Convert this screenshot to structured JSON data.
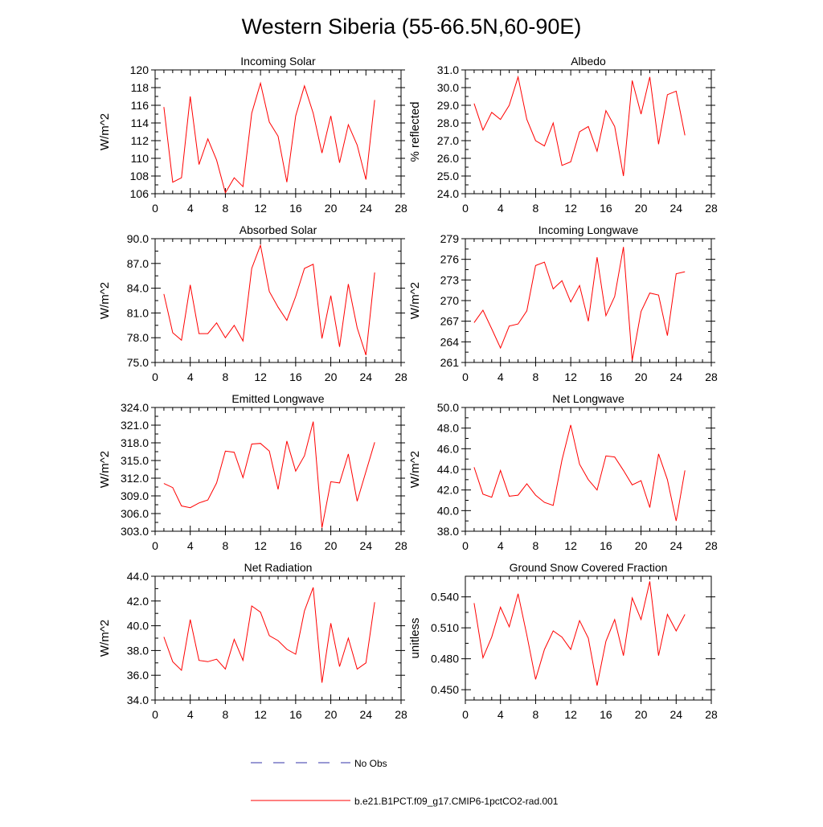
{
  "title": "Western Siberia (55-66.5N,60-90E)",
  "colors": {
    "model": "#ff0000",
    "obs": "#3333aa",
    "axis": "#000000"
  },
  "legend": {
    "obs_label": "No Obs",
    "model_label": "b.e21.B1PCT.f09_g17.CMIP6-1pctCO2-rad.001"
  },
  "chart_data": [
    {
      "type": "line",
      "title": "Incoming Solar",
      "ylabel": "W/m^2",
      "xlim": [
        0,
        28
      ],
      "ylim": [
        106,
        120
      ],
      "xticks": [
        0,
        4,
        8,
        12,
        16,
        20,
        24,
        28
      ],
      "yticks": [
        106,
        108,
        110,
        112,
        114,
        116,
        118,
        120
      ],
      "ytick_labels": [
        "106",
        "108",
        "110",
        "112",
        "114",
        "116",
        "118",
        "120"
      ],
      "x": [
        1,
        2,
        3,
        4,
        5,
        6,
        7,
        8,
        9,
        10,
        11,
        12,
        13,
        14,
        15,
        16,
        17,
        18,
        19,
        20,
        21,
        22,
        23,
        24,
        25
      ],
      "series": [
        {
          "values": [
            115.8,
            107.3,
            107.8,
            117.0,
            109.3,
            112.2,
            109.8,
            106.1,
            107.8,
            106.8,
            115.1,
            118.5,
            114.1,
            112.5,
            107.3,
            114.8,
            118.2,
            115.1,
            110.6,
            114.8,
            109.5,
            113.8,
            111.5,
            107.6,
            116.6
          ]
        }
      ]
    },
    {
      "type": "line",
      "title": "Albedo",
      "ylabel": "% reflected",
      "xlim": [
        0,
        28
      ],
      "ylim": [
        24,
        31
      ],
      "xticks": [
        0,
        4,
        8,
        12,
        16,
        20,
        24,
        28
      ],
      "yticks": [
        24,
        25,
        26,
        27,
        28,
        29,
        30,
        31
      ],
      "ytick_labels": [
        "24.0",
        "25.0",
        "26.0",
        "27.0",
        "28.0",
        "29.0",
        "30.0",
        "31.0"
      ],
      "x": [
        1,
        2,
        3,
        4,
        5,
        6,
        7,
        8,
        9,
        10,
        11,
        12,
        13,
        14,
        15,
        16,
        17,
        18,
        19,
        20,
        21,
        22,
        23,
        24,
        25
      ],
      "series": [
        {
          "values": [
            29.1,
            27.6,
            28.6,
            28.2,
            29.0,
            30.6,
            28.2,
            27.0,
            26.7,
            28.0,
            25.6,
            25.8,
            27.5,
            27.8,
            26.4,
            28.7,
            27.8,
            25.0,
            30.4,
            28.5,
            30.6,
            26.8,
            29.6,
            29.8,
            27.3
          ]
        }
      ]
    },
    {
      "type": "line",
      "title": "Absorbed Solar",
      "ylabel": "W/m^2",
      "xlim": [
        0,
        28
      ],
      "ylim": [
        75,
        90
      ],
      "xticks": [
        0,
        4,
        8,
        12,
        16,
        20,
        24,
        28
      ],
      "yticks": [
        75,
        78,
        81,
        84,
        87,
        90
      ],
      "ytick_labels": [
        "75.0",
        "78.0",
        "81.0",
        "84.0",
        "87.0",
        "90.0"
      ],
      "x": [
        1,
        2,
        3,
        4,
        5,
        6,
        7,
        8,
        9,
        10,
        11,
        12,
        13,
        14,
        15,
        16,
        17,
        18,
        19,
        20,
        21,
        22,
        23,
        24,
        25
      ],
      "series": [
        {
          "values": [
            83.3,
            78.6,
            77.7,
            84.4,
            78.5,
            78.5,
            79.8,
            78.0,
            79.5,
            77.6,
            86.4,
            89.2,
            83.6,
            81.7,
            80.1,
            83.0,
            86.4,
            86.9,
            77.9,
            83.1,
            76.9,
            84.5,
            79.2,
            75.9,
            85.9
          ]
        }
      ]
    },
    {
      "type": "line",
      "title": "Incoming Longwave",
      "ylabel": "W/m^2",
      "xlim": [
        0,
        28
      ],
      "ylim": [
        261,
        279
      ],
      "xticks": [
        0,
        4,
        8,
        12,
        16,
        20,
        24,
        28
      ],
      "yticks": [
        261,
        264,
        267,
        270,
        273,
        276,
        279
      ],
      "ytick_labels": [
        "261",
        "264",
        "267",
        "270",
        "273",
        "276",
        "279"
      ],
      "x": [
        1,
        2,
        3,
        4,
        5,
        6,
        7,
        8,
        9,
        10,
        11,
        12,
        13,
        14,
        15,
        16,
        17,
        18,
        19,
        20,
        21,
        22,
        23,
        24,
        25
      ],
      "series": [
        {
          "values": [
            266.8,
            268.6,
            265.9,
            263.1,
            266.3,
            266.6,
            268.5,
            275.1,
            275.6,
            271.7,
            272.9,
            269.8,
            272.2,
            267.0,
            276.3,
            267.8,
            270.6,
            277.8,
            261.3,
            268.4,
            271.1,
            270.8,
            264.9,
            273.9,
            274.2
          ]
        }
      ]
    },
    {
      "type": "line",
      "title": "Emitted Longwave",
      "ylabel": "W/m^2",
      "xlim": [
        0,
        28
      ],
      "ylim": [
        303,
        324
      ],
      "xticks": [
        0,
        4,
        8,
        12,
        16,
        20,
        24,
        28
      ],
      "yticks": [
        303,
        306,
        309,
        312,
        315,
        318,
        321,
        324
      ],
      "ytick_labels": [
        "303.0",
        "306.0",
        "309.0",
        "312.0",
        "315.0",
        "318.0",
        "321.0",
        "324.0"
      ],
      "x": [
        1,
        2,
        3,
        4,
        5,
        6,
        7,
        8,
        9,
        10,
        11,
        12,
        13,
        14,
        15,
        16,
        17,
        18,
        19,
        20,
        21,
        22,
        23,
        24,
        25
      ],
      "series": [
        {
          "values": [
            311.1,
            310.4,
            307.3,
            307.0,
            307.8,
            308.3,
            311.2,
            316.6,
            316.4,
            312.1,
            317.8,
            317.9,
            316.6,
            310.1,
            318.3,
            313.2,
            315.8,
            321.6,
            303.6,
            311.4,
            311.2,
            316.1,
            308.1,
            313.1,
            318.1
          ]
        }
      ]
    },
    {
      "type": "line",
      "title": "Net Longwave",
      "ylabel": "W/m^2",
      "xlim": [
        0,
        28
      ],
      "ylim": [
        38,
        50
      ],
      "xticks": [
        0,
        4,
        8,
        12,
        16,
        20,
        24,
        28
      ],
      "yticks": [
        38,
        40,
        42,
        44,
        46,
        48,
        50
      ],
      "ytick_labels": [
        "38.0",
        "40.0",
        "42.0",
        "44.0",
        "46.0",
        "48.0",
        "50.0"
      ],
      "x": [
        1,
        2,
        3,
        4,
        5,
        6,
        7,
        8,
        9,
        10,
        11,
        12,
        13,
        14,
        15,
        16,
        17,
        18,
        19,
        20,
        21,
        22,
        23,
        24,
        25
      ],
      "series": [
        {
          "values": [
            44.2,
            41.6,
            41.3,
            43.9,
            41.4,
            41.5,
            42.6,
            41.5,
            40.8,
            40.5,
            44.9,
            48.3,
            44.5,
            43.0,
            42.0,
            45.3,
            45.2,
            43.9,
            42.5,
            42.9,
            40.3,
            45.5,
            43.0,
            39.0,
            43.9
          ]
        }
      ]
    },
    {
      "type": "line",
      "title": "Net Radiation",
      "ylabel": "W/m^2",
      "xlim": [
        0,
        28
      ],
      "ylim": [
        34,
        44
      ],
      "xticks": [
        0,
        4,
        8,
        12,
        16,
        20,
        24,
        28
      ],
      "yticks": [
        34,
        36,
        38,
        40,
        42,
        44
      ],
      "ytick_labels": [
        "34.0",
        "36.0",
        "38.0",
        "40.0",
        "42.0",
        "44.0"
      ],
      "x": [
        1,
        2,
        3,
        4,
        5,
        6,
        7,
        8,
        9,
        10,
        11,
        12,
        13,
        14,
        15,
        16,
        17,
        18,
        19,
        20,
        21,
        22,
        23,
        24,
        25
      ],
      "series": [
        {
          "values": [
            39.1,
            37.1,
            36.4,
            40.5,
            37.2,
            37.1,
            37.3,
            36.5,
            38.9,
            37.2,
            41.6,
            41.1,
            39.2,
            38.8,
            38.1,
            37.7,
            41.2,
            43.1,
            35.4,
            40.2,
            36.7,
            39.0,
            36.5,
            37.0,
            41.9
          ]
        }
      ]
    },
    {
      "type": "line",
      "title": "Ground Snow Covered Fraction",
      "ylabel": "unitless",
      "xlim": [
        0,
        28
      ],
      "ylim": [
        0.44,
        0.56
      ],
      "xticks": [
        0,
        4,
        8,
        12,
        16,
        20,
        24,
        28
      ],
      "yticks": [
        0.45,
        0.48,
        0.51,
        0.54
      ],
      "ytick_labels": [
        "0.450",
        "0.480",
        "0.510",
        "0.540"
      ],
      "x": [
        1,
        2,
        3,
        4,
        5,
        6,
        7,
        8,
        9,
        10,
        11,
        12,
        13,
        14,
        15,
        16,
        17,
        18,
        19,
        20,
        21,
        22,
        23,
        24,
        25
      ],
      "series": [
        {
          "values": [
            0.534,
            0.481,
            0.501,
            0.53,
            0.511,
            0.543,
            0.503,
            0.46,
            0.489,
            0.507,
            0.501,
            0.489,
            0.517,
            0.5,
            0.454,
            0.497,
            0.518,
            0.483,
            0.539,
            0.518,
            0.555,
            0.483,
            0.523,
            0.507,
            0.523
          ]
        }
      ]
    }
  ]
}
